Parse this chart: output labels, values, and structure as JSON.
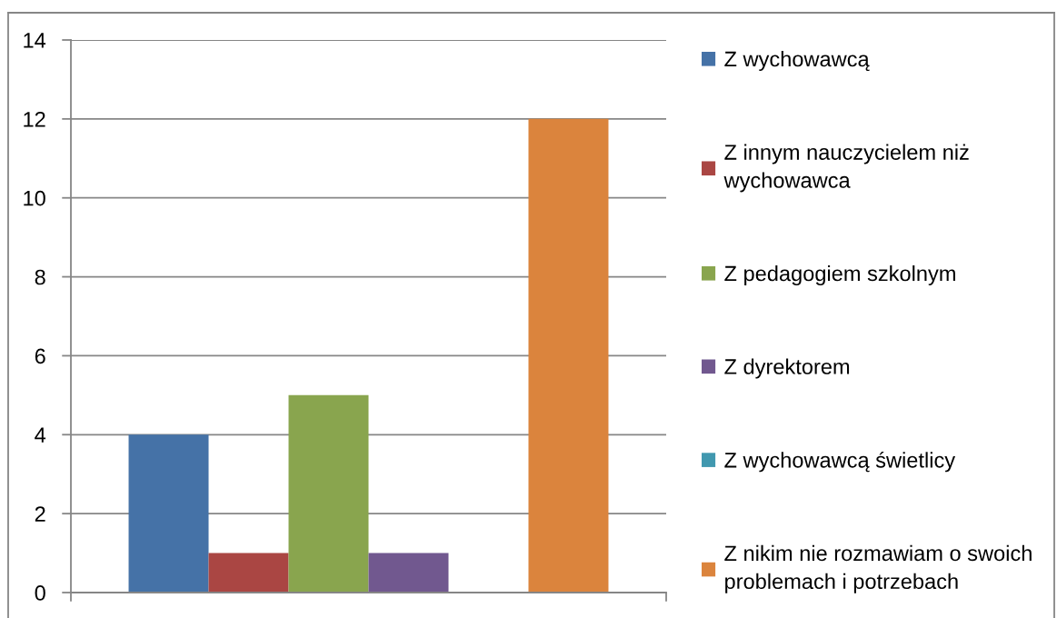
{
  "chart_data": {
    "type": "bar",
    "categories": [
      null
    ],
    "series": [
      {
        "name": "Z wychowawcą",
        "color": "#4572a7",
        "values": [
          4
        ]
      },
      {
        "name": "Z innym nauczycielem niż wychowawca",
        "color": "#aa4643",
        "values": [
          1
        ]
      },
      {
        "name": "Z pedagogiem szkolnym",
        "color": "#89a54e",
        "values": [
          5
        ]
      },
      {
        "name": "Z dyrektorem",
        "color": "#71588f",
        "values": [
          1
        ]
      },
      {
        "name": "Z wychowawcą świetlicy",
        "color": "#4198af",
        "values": [
          0
        ]
      },
      {
        "name": "Z nikim nie rozmawiam o swoich problemach i potrzebach",
        "color": "#db843d",
        "values": [
          12
        ]
      }
    ],
    "ylim": [
      0,
      14
    ],
    "yticks": [
      0,
      2,
      4,
      6,
      8,
      10,
      12,
      14
    ],
    "grid": "y",
    "legend": "right"
  }
}
